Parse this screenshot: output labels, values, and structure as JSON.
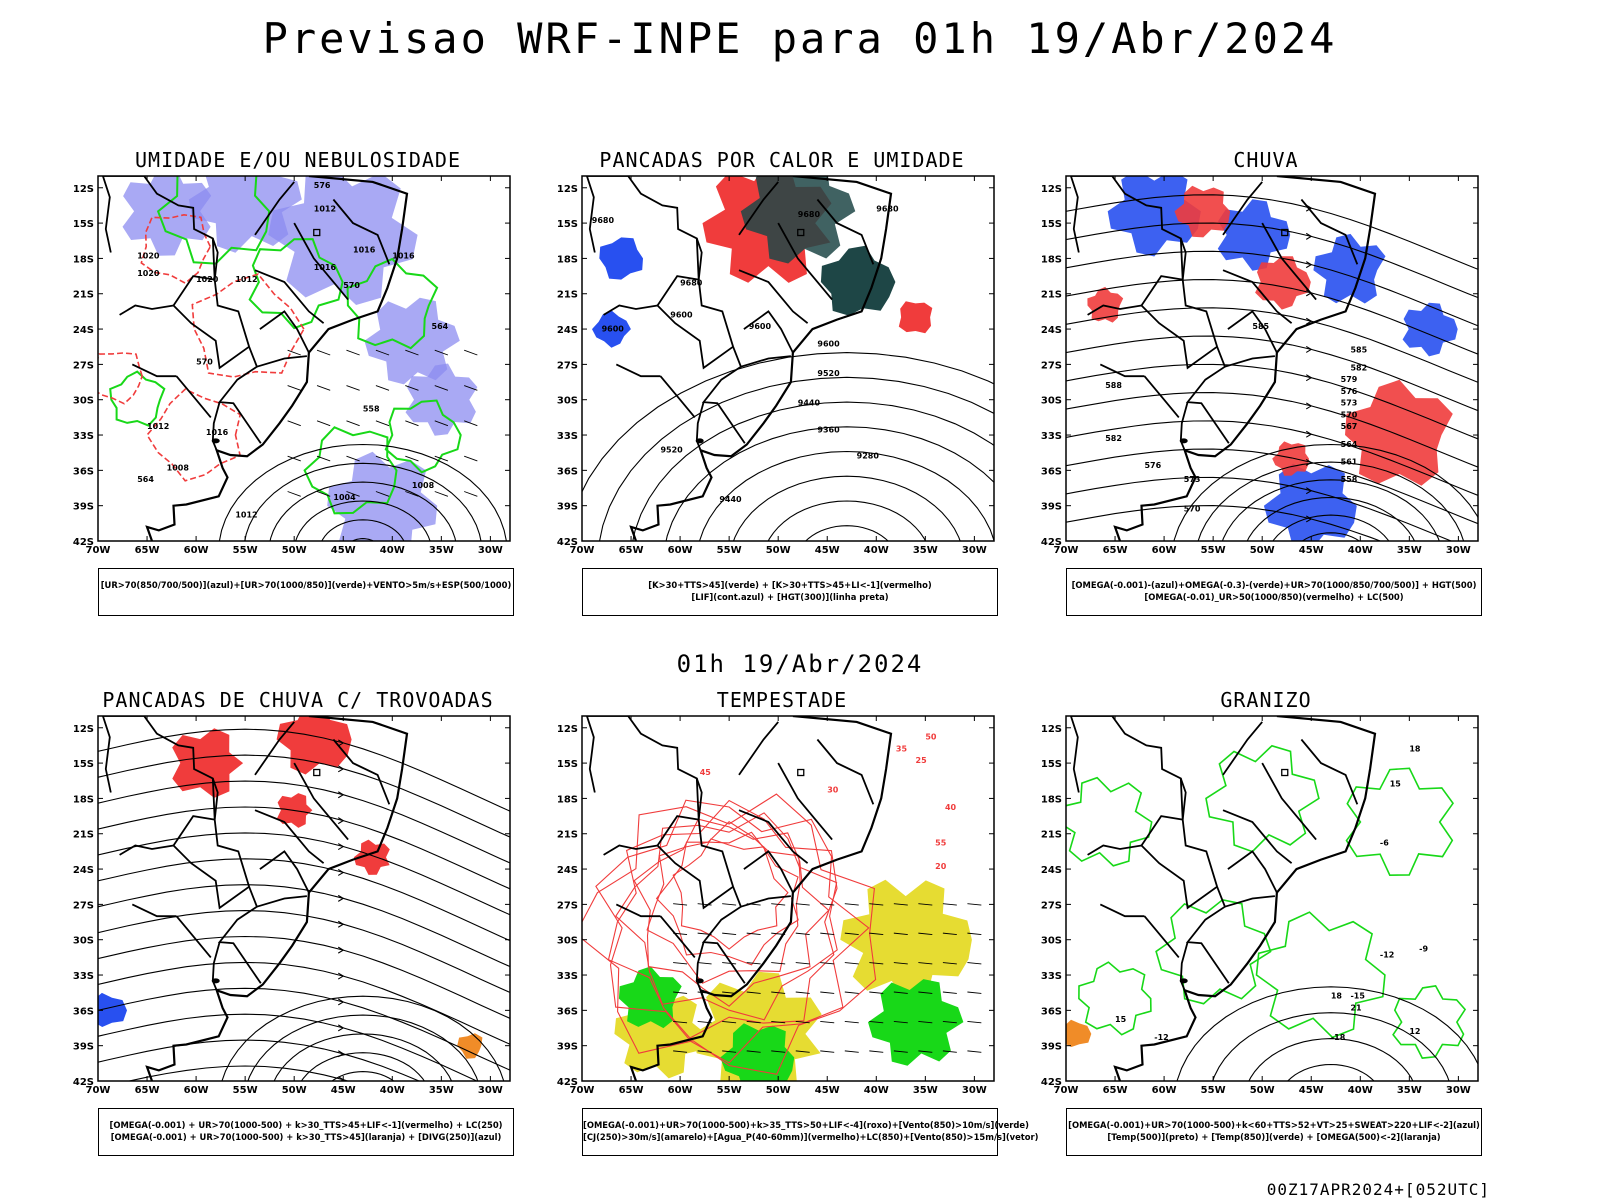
{
  "title": "Previsao WRF-INPE  para 01h 19/Abr/2024",
  "mid_title": "01h 19/Abr/2024",
  "footer": "00Z17APR2024+[052UTC]",
  "axes": {
    "lat_ticks": [
      "12S",
      "15S",
      "18S",
      "21S",
      "24S",
      "27S",
      "30S",
      "33S",
      "36S",
      "39S",
      "42S"
    ],
    "lon_ticks": [
      "70W",
      "65W",
      "60W",
      "55W",
      "50W",
      "45W",
      "40W",
      "35W",
      "30W"
    ]
  },
  "colors": {
    "humidity_blue": "#8c8cf0",
    "humidity_green": "#18d818",
    "red": "#f03c3c",
    "dark_teal": "#1e4646",
    "blue": "#2850f0",
    "yellow": "#e6dc32",
    "orange": "#f08c28",
    "black": "#000000"
  },
  "panels": [
    {
      "id": "p1",
      "title": "UMIDADE E/OU NEBULOSIDADE",
      "legend": [
        "[UR>70(850/700/500)](azul)+[UR>70(1000/850)](verde)+VENTO>5m/s+ESP(500/1000)"
      ],
      "contour_labels": [
        "1012",
        "1012",
        "1016",
        "1016",
        "1016",
        "1020",
        "1020",
        "1020",
        "1016",
        "1012",
        "1008",
        "1004",
        "1008",
        "1012",
        "564",
        "570",
        "576",
        "570",
        "564",
        "558"
      ]
    },
    {
      "id": "p2",
      "title": "PANCADAS POR CALOR E UMIDADE",
      "legend": [
        "[K>30+TTS>45](verde) + [K>30+TTS>45+LI<-1](vermelho)",
        "[LIF](cont.azul) + [HGT(300)](linha preta)"
      ],
      "contour_labels": [
        "9680",
        "9680",
        "9680",
        "9680",
        "9600",
        "9600",
        "9600",
        "9600",
        "9520",
        "9520",
        "9440",
        "9440",
        "9360",
        "9280"
      ]
    },
    {
      "id": "p3",
      "title": "CHUVA",
      "legend": [
        "[OMEGA(-0.001)-(azul)+OMEGA(-0.3)-(verde)+UR>70(1000/850/700/500)] + HGT(500)",
        "[OMEGA(-0.01)_UR>50(1000/850)(vermelho) + LC(500)"
      ],
      "contour_labels": [
        "585",
        "582",
        "579",
        "576",
        "573",
        "570",
        "567",
        "564",
        "561",
        "558",
        "588",
        "585",
        "582",
        "576",
        "573",
        "570"
      ]
    },
    {
      "id": "p4",
      "title": "PANCADAS DE CHUVA C/ TROVOADAS",
      "legend": [
        "[OMEGA(-0.001) + UR>70(1000-500) + k>30_TTS>45+LIF<-1](vermelho) + LC(250)",
        "[OMEGA(-0.001) + UR>70(1000-500) + k>30_TTS>45](laranja) + [DIVG(250)](azul)"
      ],
      "contour_labels": []
    },
    {
      "id": "p5",
      "title": "TEMPESTADE",
      "legend": [
        "[OMEGA(-0.001)+UR>70(1000-500)+k>35_TTS>50+LIF<-4](roxo)+[Vento(850)>10m/s](verde)",
        "[CJ(250)>30m/s](amarelo)+[Agua_P(40-60mm)](vermelho)+LC(850)+[Vento(850)>15m/s](vetor)"
      ],
      "contour_labels": [
        "50",
        "55",
        "45",
        "40",
        "30",
        "35",
        "25",
        "20"
      ]
    },
    {
      "id": "p6",
      "title": "GRANIZO",
      "legend": [
        "[OMEGA(-0.001)+UR>70(1000-500)+k<60+TTS>52+VT>25+SWEAT>220+LIF<-2](azul)",
        "[Temp(500)](preto) + [Temp(850)](verde) + [OMEGA(500)<-2](laranja)"
      ],
      "contour_labels": [
        "-12",
        "-15",
        "-18",
        "-12",
        "-9",
        "-6",
        "15",
        "18",
        "21",
        "18",
        "15",
        "12"
      ]
    }
  ]
}
